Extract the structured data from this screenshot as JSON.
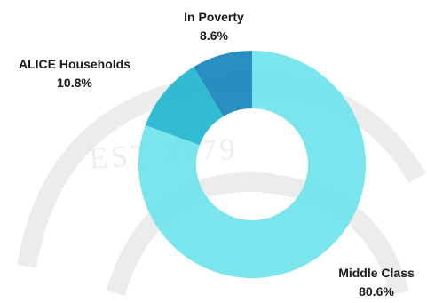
{
  "chart_data": {
    "type": "pie",
    "variant": "donut",
    "title": "",
    "slices": [
      {
        "label": "Middle Class",
        "value": 80.6,
        "value_label": "80.6%",
        "color": "#6fe3ea"
      },
      {
        "label": "ALICE Households",
        "value": 10.8,
        "value_label": "10.8%",
        "color": "#1fb6cf"
      },
      {
        "label": "In Poverty",
        "value": 8.6,
        "value_label": "8.6%",
        "color": "#1784bb"
      }
    ],
    "legend": "none",
    "start_angle_deg": 0,
    "direction": "clockwise"
  },
  "watermark": {
    "text": "EST 1979"
  }
}
